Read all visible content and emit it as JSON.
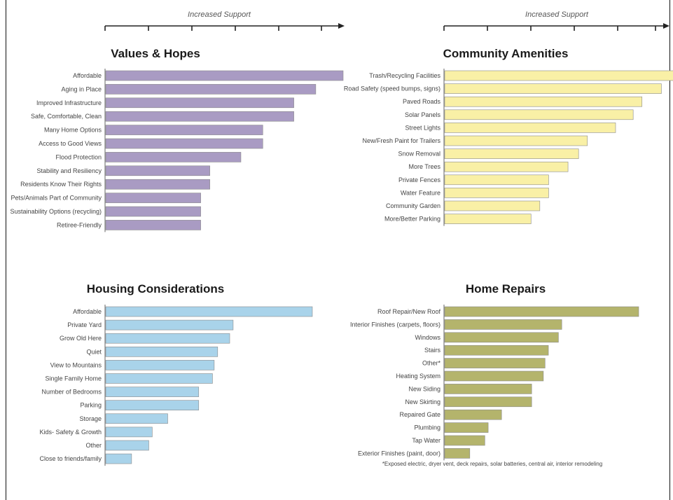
{
  "chart_data": [
    {
      "type": "bar",
      "title": "Values & Hopes",
      "axis_label": "Increased Support",
      "orientation": "horizontal",
      "color": "#a99bc3",
      "categories": [
        "Affordable",
        "Aging in Place",
        "Improved Infrastructure",
        "Safe, Comfortable, Clean",
        "Many Home Options",
        "Access to Good Views",
        "Flood Protection",
        "Stability and Resiliency",
        "Residents Know Their Rights",
        "Pets/Animals Part of Community",
        "Sustainability Options (recycling)",
        "Retiree-Friendly"
      ],
      "values": [
        13,
        11.5,
        10.3,
        10.3,
        8.6,
        8.6,
        7.4,
        5.7,
        5.7,
        5.2,
        5.2,
        5.2
      ],
      "xlim": [
        0,
        14
      ]
    },
    {
      "type": "bar",
      "title": "Community Amenities",
      "axis_label": "Increased Support",
      "orientation": "horizontal",
      "color": "#f9f0a6",
      "categories": [
        "Trash/Recycling Facilities",
        "Road Safety (speed bumps, signs)",
        "Paved Roads",
        "Solar Panels",
        "Street Lights",
        "New/Fresh Paint for Trailers",
        "Snow Removal",
        "More Trees",
        "Private Fences",
        "Water Feature",
        "Community Garden",
        "More/Better Parking"
      ],
      "values": [
        13,
        12.3,
        11.2,
        10.7,
        9.7,
        8.1,
        7.6,
        7.0,
        5.9,
        5.9,
        5.4,
        4.9
      ],
      "xlim": [
        0,
        14
      ]
    },
    {
      "type": "bar",
      "title": "Housing Considerations",
      "axis_label": "",
      "orientation": "horizontal",
      "color": "#a9d3ea",
      "categories": [
        "Affordable",
        "Private Yard",
        "Grow Old Here",
        "Quiet",
        "View to Mountains",
        "Single Family Home",
        "Number of Bedrooms",
        "Parking",
        "Storage",
        "Kids- Safety & Growth",
        "Other",
        "Close to friends/family"
      ],
      "values": [
        12.0,
        7.4,
        7.2,
        6.5,
        6.3,
        6.2,
        5.4,
        5.4,
        3.6,
        2.7,
        2.5,
        1.5
      ],
      "xlim": [
        0,
        14
      ]
    },
    {
      "type": "bar",
      "title": "Home Repairs",
      "axis_label": "",
      "orientation": "horizontal",
      "color": "#b4b46c",
      "categories": [
        "Roof Repair/New Roof",
        "Interior Finishes (carpets, floors)",
        "Windows",
        "Stairs",
        "Other*",
        "Heating System",
        "New Siding",
        "New Skirting",
        "Repaired Gate",
        "Plumbing",
        "Tap Water",
        "Exterior Finishes (paint, door)"
      ],
      "values": [
        11.6,
        7.0,
        6.8,
        6.2,
        6.0,
        5.9,
        5.2,
        5.2,
        3.4,
        2.6,
        2.4,
        1.5
      ],
      "xlim": [
        0,
        14
      ],
      "footnote": "*Exposed electric, dryer vent, deck repairs, solar batteries, central air, interior remodeling"
    }
  ]
}
